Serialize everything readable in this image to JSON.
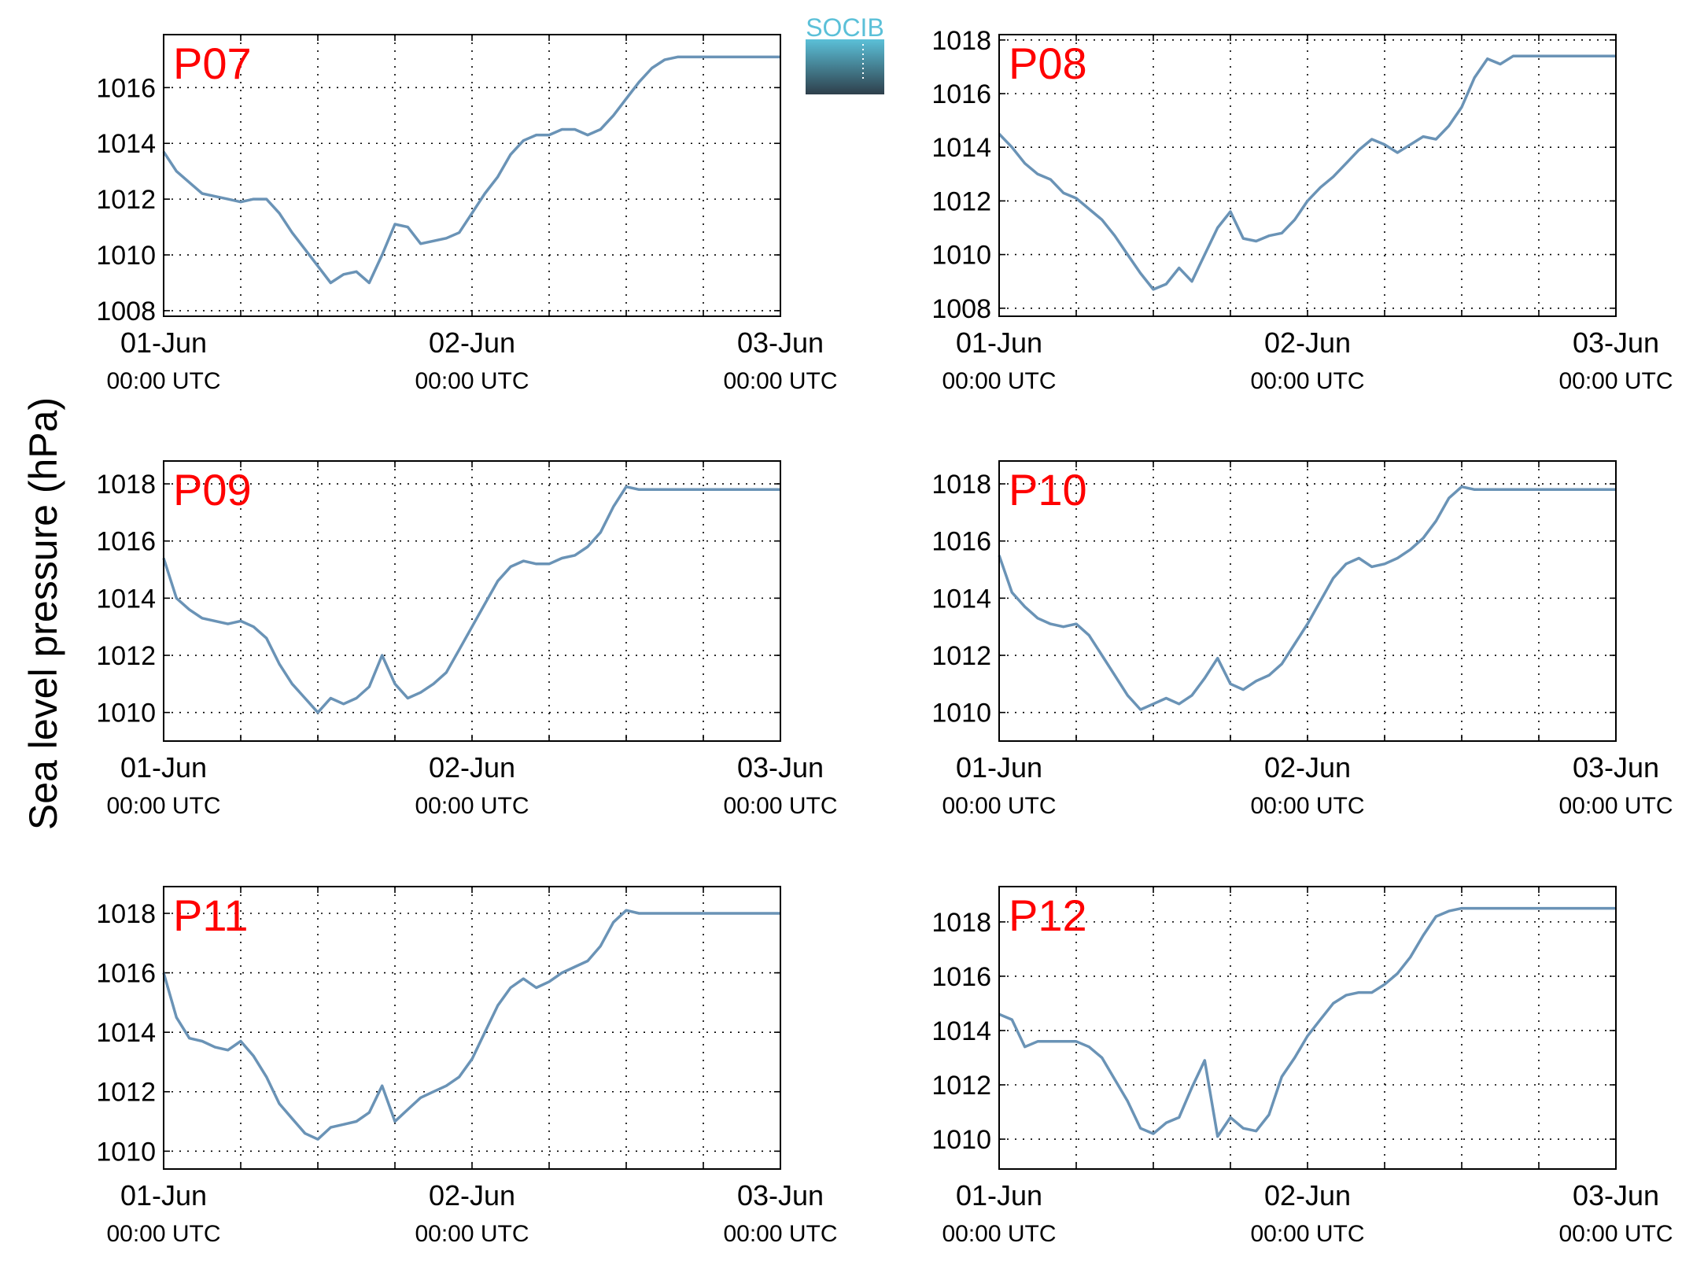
{
  "figure": {
    "ylabel": "Sea level pressure (hPa)",
    "logo_text": "SOCIB",
    "colors": {
      "line": "#6a93b6",
      "panel_label": "#ff0000",
      "axis": "#000000",
      "logo_top": "#5bc0d8",
      "logo_bottom": "#2e3f4b"
    }
  },
  "chart_data": [
    {
      "type": "line",
      "panel_label": "P07",
      "xticks": [
        [
          "01-Jun",
          "00:00 UTC"
        ],
        [
          "02-Jun",
          "00:00 UTC"
        ],
        [
          "03-Jun",
          "00:00 UTC"
        ]
      ],
      "xlim_hours": [
        0,
        48
      ],
      "ylim": [
        1007.8,
        1017.9
      ],
      "yticks": [
        1008,
        1010,
        1012,
        1014,
        1016
      ],
      "grid": true,
      "series": [
        {
          "hours": [
            0,
            1,
            2,
            3,
            4,
            5,
            6,
            7,
            8,
            9,
            10,
            11,
            12,
            13,
            14,
            15,
            16,
            17,
            18,
            19,
            20,
            21,
            22,
            23,
            24,
            25,
            26,
            27,
            28,
            29,
            30,
            31,
            32,
            33,
            34,
            35,
            36,
            37,
            38,
            39,
            40,
            41,
            42,
            43,
            44,
            45,
            46,
            47,
            48
          ],
          "values": [
            1013.7,
            1013.0,
            1012.6,
            1012.2,
            1012.1,
            1012.0,
            1011.9,
            1012.0,
            1012.0,
            1011.5,
            1010.8,
            1010.2,
            1009.6,
            1009.0,
            1009.3,
            1009.4,
            1009.0,
            1010.0,
            1011.1,
            1011.0,
            1010.4,
            1010.5,
            1010.6,
            1010.8,
            1011.5,
            1012.2,
            1012.8,
            1013.6,
            1014.1,
            1014.3,
            1014.3,
            1014.5,
            1014.5,
            1014.3,
            1014.5,
            1015.0,
            1015.6,
            1016.2,
            1016.7,
            1017.0,
            1017.1,
            1017.1,
            1017.1,
            1017.1,
            1017.1,
            1017.1,
            1017.1,
            1017.1,
            1017.1
          ]
        }
      ]
    },
    {
      "type": "line",
      "panel_label": "P08",
      "xticks": [
        [
          "01-Jun",
          "00:00 UTC"
        ],
        [
          "02-Jun",
          "00:00 UTC"
        ],
        [
          "03-Jun",
          "00:00 UTC"
        ]
      ],
      "xlim_hours": [
        0,
        48
      ],
      "ylim": [
        1007.7,
        1018.2
      ],
      "yticks": [
        1008,
        1010,
        1012,
        1014,
        1016,
        1018
      ],
      "grid": true,
      "series": [
        {
          "hours": [
            0,
            1,
            2,
            3,
            4,
            5,
            6,
            7,
            8,
            9,
            10,
            11,
            12,
            13,
            14,
            15,
            16,
            17,
            18,
            19,
            20,
            21,
            22,
            23,
            24,
            25,
            26,
            27,
            28,
            29,
            30,
            31,
            32,
            33,
            34,
            35,
            36,
            37,
            38,
            39,
            40,
            41,
            42,
            43,
            44,
            45,
            46,
            47,
            48
          ],
          "values": [
            1014.5,
            1014.0,
            1013.4,
            1013.0,
            1012.8,
            1012.3,
            1012.1,
            1011.7,
            1011.3,
            1010.7,
            1010.0,
            1009.3,
            1008.7,
            1008.9,
            1009.5,
            1009.0,
            1010.0,
            1011.0,
            1011.6,
            1010.6,
            1010.5,
            1010.7,
            1010.8,
            1011.3,
            1012.0,
            1012.5,
            1012.9,
            1013.4,
            1013.9,
            1014.3,
            1014.1,
            1013.8,
            1014.1,
            1014.4,
            1014.3,
            1014.8,
            1015.5,
            1016.6,
            1017.3,
            1017.1,
            1017.4,
            1017.4,
            1017.4,
            1017.4,
            1017.4,
            1017.4,
            1017.4,
            1017.4,
            1017.4
          ]
        }
      ]
    },
    {
      "type": "line",
      "panel_label": "P09",
      "xticks": [
        [
          "01-Jun",
          "00:00 UTC"
        ],
        [
          "02-Jun",
          "00:00 UTC"
        ],
        [
          "03-Jun",
          "00:00 UTC"
        ]
      ],
      "xlim_hours": [
        0,
        48
      ],
      "ylim": [
        1009.0,
        1018.8
      ],
      "yticks": [
        1010,
        1012,
        1014,
        1016,
        1018
      ],
      "grid": true,
      "series": [
        {
          "hours": [
            0,
            1,
            2,
            3,
            4,
            5,
            6,
            7,
            8,
            9,
            10,
            11,
            12,
            13,
            14,
            15,
            16,
            17,
            18,
            19,
            20,
            21,
            22,
            23,
            24,
            25,
            26,
            27,
            28,
            29,
            30,
            31,
            32,
            33,
            34,
            35,
            36,
            37,
            38,
            39,
            40,
            41,
            42,
            43,
            44,
            45,
            46,
            47,
            48
          ],
          "values": [
            1015.4,
            1014.0,
            1013.6,
            1013.3,
            1013.2,
            1013.1,
            1013.2,
            1013.0,
            1012.6,
            1011.7,
            1011.0,
            1010.5,
            1010.0,
            1010.5,
            1010.3,
            1010.5,
            1010.9,
            1012.0,
            1011.0,
            1010.5,
            1010.7,
            1011.0,
            1011.4,
            1012.2,
            1013.0,
            1013.8,
            1014.6,
            1015.1,
            1015.3,
            1015.2,
            1015.2,
            1015.4,
            1015.5,
            1015.8,
            1016.3,
            1017.2,
            1017.9,
            1017.8,
            1017.8,
            1017.8,
            1017.8,
            1017.8,
            1017.8,
            1017.8,
            1017.8,
            1017.8,
            1017.8,
            1017.8,
            1017.8
          ]
        }
      ]
    },
    {
      "type": "line",
      "panel_label": "P10",
      "xticks": [
        [
          "01-Jun",
          "00:00 UTC"
        ],
        [
          "02-Jun",
          "00:00 UTC"
        ],
        [
          "03-Jun",
          "00:00 UTC"
        ]
      ],
      "xlim_hours": [
        0,
        48
      ],
      "ylim": [
        1009.0,
        1018.8
      ],
      "yticks": [
        1010,
        1012,
        1014,
        1016,
        1018
      ],
      "grid": true,
      "series": [
        {
          "hours": [
            0,
            1,
            2,
            3,
            4,
            5,
            6,
            7,
            8,
            9,
            10,
            11,
            12,
            13,
            14,
            15,
            16,
            17,
            18,
            19,
            20,
            21,
            22,
            23,
            24,
            25,
            26,
            27,
            28,
            29,
            30,
            31,
            32,
            33,
            34,
            35,
            36,
            37,
            38,
            39,
            40,
            41,
            42,
            43,
            44,
            45,
            46,
            47,
            48
          ],
          "values": [
            1015.5,
            1014.2,
            1013.7,
            1013.3,
            1013.1,
            1013.0,
            1013.1,
            1012.7,
            1012.0,
            1011.3,
            1010.6,
            1010.1,
            1010.3,
            1010.5,
            1010.3,
            1010.6,
            1011.2,
            1011.9,
            1011.0,
            1010.8,
            1011.1,
            1011.3,
            1011.7,
            1012.4,
            1013.1,
            1013.9,
            1014.7,
            1015.2,
            1015.4,
            1015.1,
            1015.2,
            1015.4,
            1015.7,
            1016.1,
            1016.7,
            1017.5,
            1017.9,
            1017.8,
            1017.8,
            1017.8,
            1017.8,
            1017.8,
            1017.8,
            1017.8,
            1017.8,
            1017.8,
            1017.8,
            1017.8,
            1017.8
          ]
        }
      ]
    },
    {
      "type": "line",
      "panel_label": "P11",
      "xticks": [
        [
          "01-Jun",
          "00:00 UTC"
        ],
        [
          "02-Jun",
          "00:00 UTC"
        ],
        [
          "03-Jun",
          "00:00 UTC"
        ]
      ],
      "xlim_hours": [
        0,
        48
      ],
      "ylim": [
        1009.4,
        1018.9
      ],
      "yticks": [
        1010,
        1012,
        1014,
        1016,
        1018
      ],
      "grid": true,
      "series": [
        {
          "hours": [
            0,
            1,
            2,
            3,
            4,
            5,
            6,
            7,
            8,
            9,
            10,
            11,
            12,
            13,
            14,
            15,
            16,
            17,
            18,
            19,
            20,
            21,
            22,
            23,
            24,
            25,
            26,
            27,
            28,
            29,
            30,
            31,
            32,
            33,
            34,
            35,
            36,
            37,
            38,
            39,
            40,
            41,
            42,
            43,
            44,
            45,
            46,
            47,
            48
          ],
          "values": [
            1016.0,
            1014.5,
            1013.8,
            1013.7,
            1013.5,
            1013.4,
            1013.7,
            1013.2,
            1012.5,
            1011.6,
            1011.1,
            1010.6,
            1010.4,
            1010.8,
            1010.9,
            1011.0,
            1011.3,
            1012.2,
            1011.0,
            1011.4,
            1011.8,
            1012.0,
            1012.2,
            1012.5,
            1013.1,
            1014.0,
            1014.9,
            1015.5,
            1015.8,
            1015.5,
            1015.7,
            1016.0,
            1016.2,
            1016.4,
            1016.9,
            1017.7,
            1018.1,
            1018.0,
            1018.0,
            1018.0,
            1018.0,
            1018.0,
            1018.0,
            1018.0,
            1018.0,
            1018.0,
            1018.0,
            1018.0,
            1018.0
          ]
        }
      ]
    },
    {
      "type": "line",
      "panel_label": "P12",
      "xticks": [
        [
          "01-Jun",
          "00:00 UTC"
        ],
        [
          "02-Jun",
          "00:00 UTC"
        ],
        [
          "03-Jun",
          "00:00 UTC"
        ]
      ],
      "xlim_hours": [
        0,
        48
      ],
      "ylim": [
        1008.9,
        1019.3
      ],
      "yticks": [
        1010,
        1012,
        1014,
        1016,
        1018
      ],
      "grid": true,
      "series": [
        {
          "hours": [
            0,
            1,
            2,
            3,
            4,
            5,
            6,
            7,
            8,
            9,
            10,
            11,
            12,
            13,
            14,
            15,
            16,
            17,
            18,
            19,
            20,
            21,
            22,
            23,
            24,
            25,
            26,
            27,
            28,
            29,
            30,
            31,
            32,
            33,
            34,
            35,
            36,
            37,
            38,
            39,
            40,
            41,
            42,
            43,
            44,
            45,
            46,
            47,
            48
          ],
          "values": [
            1014.6,
            1014.4,
            1013.4,
            1013.6,
            1013.6,
            1013.6,
            1013.6,
            1013.4,
            1013.0,
            1012.2,
            1011.4,
            1010.4,
            1010.2,
            1010.6,
            1010.8,
            1011.9,
            1012.9,
            1010.1,
            1010.8,
            1010.4,
            1010.3,
            1010.9,
            1012.3,
            1013.0,
            1013.8,
            1014.4,
            1015.0,
            1015.3,
            1015.4,
            1015.4,
            1015.7,
            1016.1,
            1016.7,
            1017.5,
            1018.2,
            1018.4,
            1018.5,
            1018.5,
            1018.5,
            1018.5,
            1018.5,
            1018.5,
            1018.5,
            1018.5,
            1018.5,
            1018.5,
            1018.5,
            1018.5,
            1018.5
          ]
        }
      ]
    }
  ]
}
